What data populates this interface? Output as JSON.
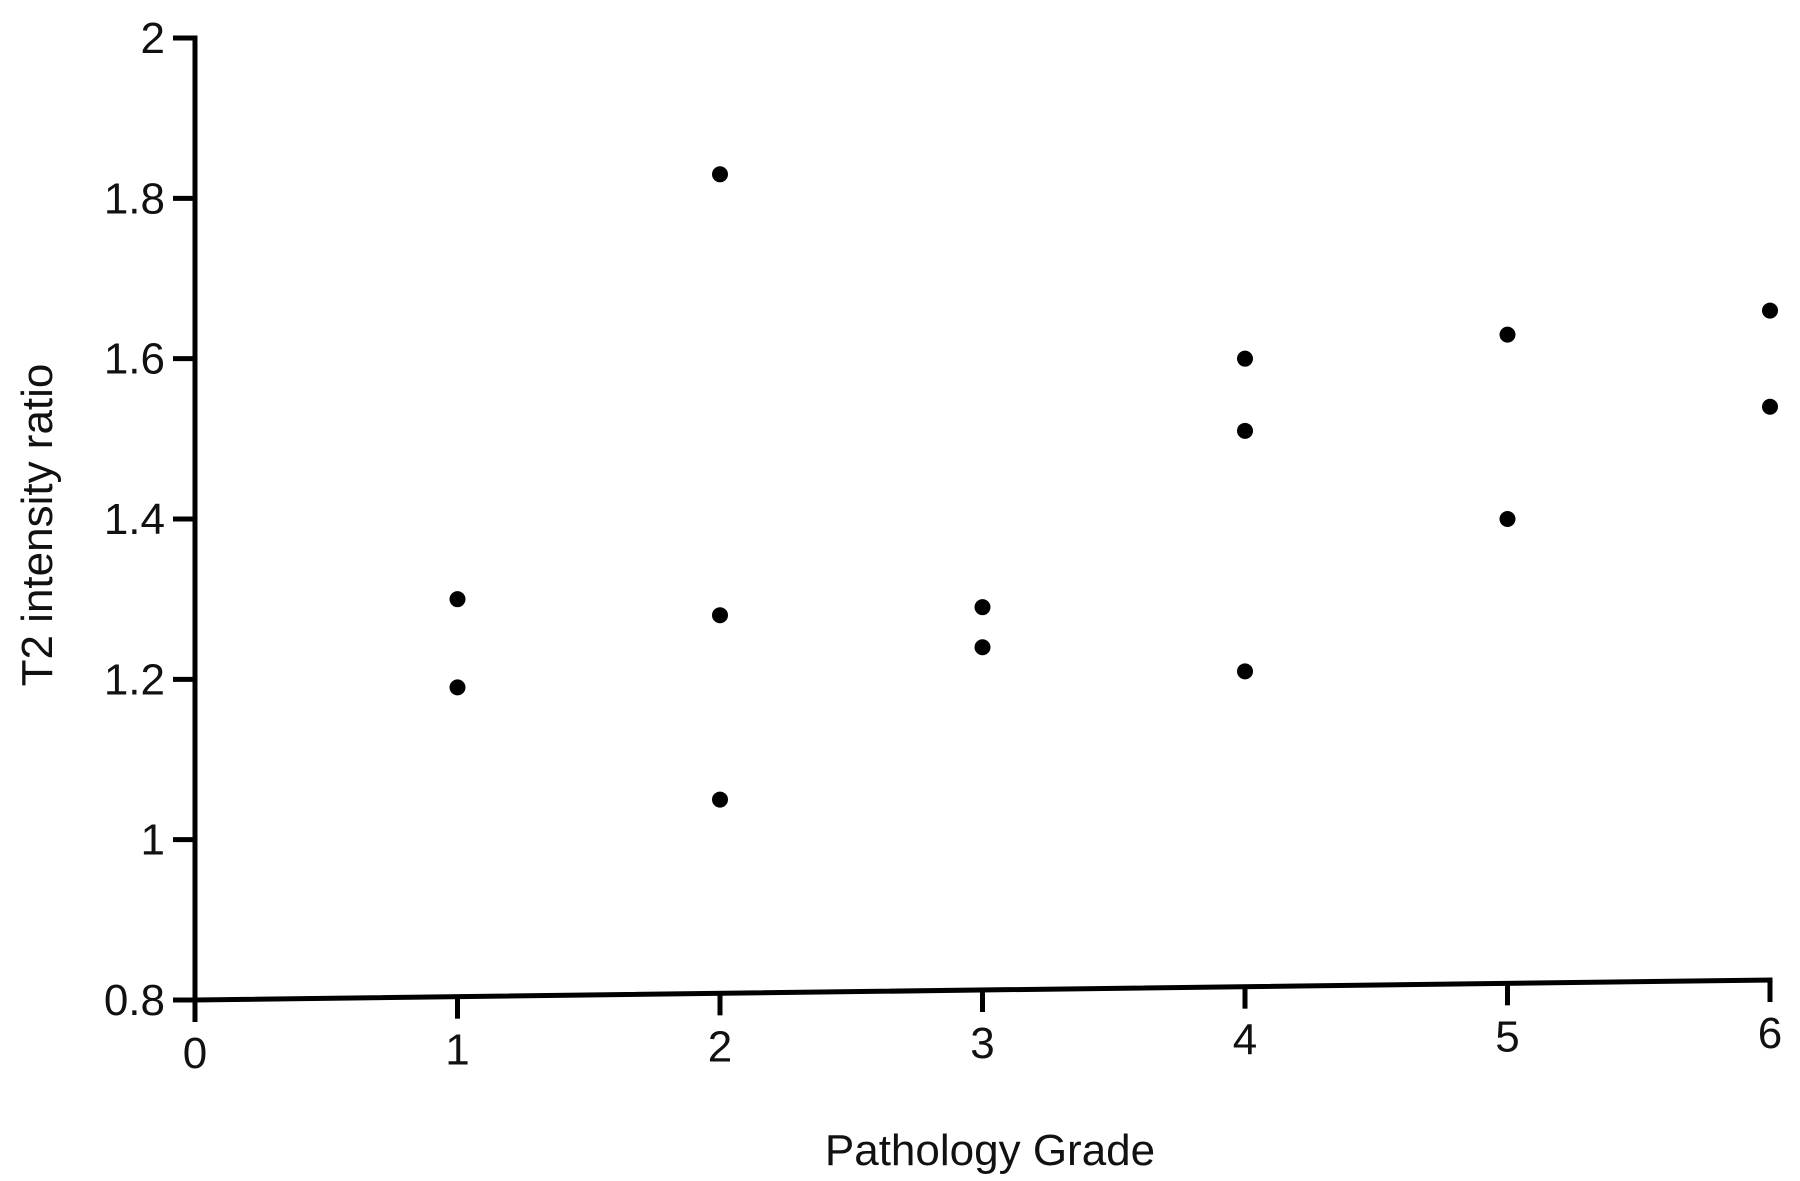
{
  "chart_data": {
    "type": "scatter",
    "title": "",
    "xlabel": "Pathology Grade",
    "ylabel": "T2 intensity ratio",
    "xlim": [
      0,
      6
    ],
    "ylim": [
      0.8,
      2
    ],
    "x_ticks": [
      "0",
      "1",
      "2",
      "3",
      "4",
      "5",
      "6"
    ],
    "y_ticks": [
      "0.8",
      "1",
      "1.2",
      "1.4",
      "1.6",
      "1.8",
      "2"
    ],
    "grid": false,
    "series": [
      {
        "points": [
          {
            "x": 1,
            "y": 1.3
          },
          {
            "x": 1,
            "y": 1.19
          },
          {
            "x": 2,
            "y": 1.83
          },
          {
            "x": 2,
            "y": 1.28
          },
          {
            "x": 2,
            "y": 1.05
          },
          {
            "x": 3,
            "y": 1.29
          },
          {
            "x": 3,
            "y": 1.24
          },
          {
            "x": 4,
            "y": 1.6
          },
          {
            "x": 4,
            "y": 1.51
          },
          {
            "x": 4,
            "y": 1.21
          },
          {
            "x": 5,
            "y": 1.63
          },
          {
            "x": 5,
            "y": 1.4
          },
          {
            "x": 6,
            "y": 1.66
          },
          {
            "x": 6,
            "y": 1.54
          }
        ]
      }
    ],
    "colors": {
      "points": "#000000",
      "axes": "#000000"
    }
  }
}
